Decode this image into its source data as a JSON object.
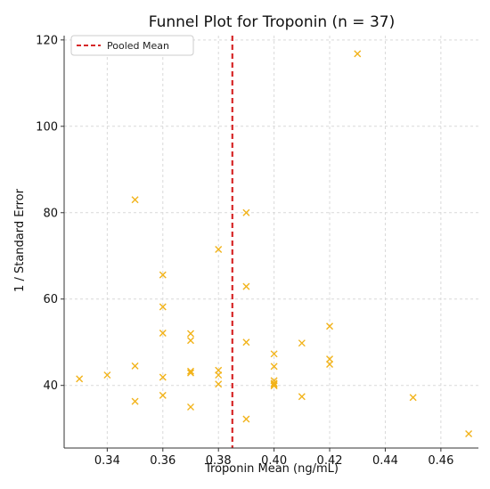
{
  "chart_data": {
    "type": "scatter",
    "title": "Funnel Plot for Troponin (n = 37)",
    "xlabel": "Troponin Mean (ng/mL)",
    "ylabel": "1 / Standard Error",
    "xlim": [
      0.3245,
      0.4735
    ],
    "ylim": [
      25.5,
      121
    ],
    "xticks": [
      0.34,
      0.36,
      0.38,
      0.4,
      0.42,
      0.44,
      0.46
    ],
    "xtick_labels": [
      "0.34",
      "0.36",
      "0.38",
      "0.40",
      "0.42",
      "0.44",
      "0.46"
    ],
    "yticks": [
      40,
      60,
      80,
      100,
      120
    ],
    "ytick_labels": [
      "40",
      "60",
      "80",
      "100",
      "120"
    ],
    "grid": true,
    "legend_position": "top-left",
    "marker": "x",
    "marker_color": "#F2B31A",
    "reference_line": {
      "name": "Pooled Mean",
      "x": 0.385,
      "color": "#D62728",
      "style": "dashed"
    },
    "points": [
      {
        "x": 0.33,
        "y": 41.5
      },
      {
        "x": 0.34,
        "y": 42.4
      },
      {
        "x": 0.35,
        "y": 83.0
      },
      {
        "x": 0.35,
        "y": 44.5
      },
      {
        "x": 0.35,
        "y": 36.3
      },
      {
        "x": 0.36,
        "y": 65.6
      },
      {
        "x": 0.36,
        "y": 58.2
      },
      {
        "x": 0.36,
        "y": 52.1
      },
      {
        "x": 0.36,
        "y": 41.9
      },
      {
        "x": 0.36,
        "y": 37.7
      },
      {
        "x": 0.37,
        "y": 52.0
      },
      {
        "x": 0.37,
        "y": 50.4
      },
      {
        "x": 0.37,
        "y": 43.3
      },
      {
        "x": 0.37,
        "y": 42.9
      },
      {
        "x": 0.37,
        "y": 35.0
      },
      {
        "x": 0.38,
        "y": 71.5
      },
      {
        "x": 0.38,
        "y": 43.5
      },
      {
        "x": 0.38,
        "y": 42.4
      },
      {
        "x": 0.38,
        "y": 40.3
      },
      {
        "x": 0.39,
        "y": 80.0
      },
      {
        "x": 0.39,
        "y": 62.9
      },
      {
        "x": 0.39,
        "y": 50.0
      },
      {
        "x": 0.39,
        "y": 32.2
      },
      {
        "x": 0.4,
        "y": 47.3
      },
      {
        "x": 0.4,
        "y": 44.4
      },
      {
        "x": 0.4,
        "y": 41.1
      },
      {
        "x": 0.4,
        "y": 40.5
      },
      {
        "x": 0.4,
        "y": 39.9
      },
      {
        "x": 0.41,
        "y": 49.8
      },
      {
        "x": 0.41,
        "y": 37.4
      },
      {
        "x": 0.42,
        "y": 53.7
      },
      {
        "x": 0.42,
        "y": 46.1
      },
      {
        "x": 0.42,
        "y": 44.9
      },
      {
        "x": 0.43,
        "y": 116.8
      },
      {
        "x": 0.45,
        "y": 37.2
      },
      {
        "x": 0.47,
        "y": 28.8
      },
      {
        "x": 0.4,
        "y": 40.2
      }
    ]
  }
}
